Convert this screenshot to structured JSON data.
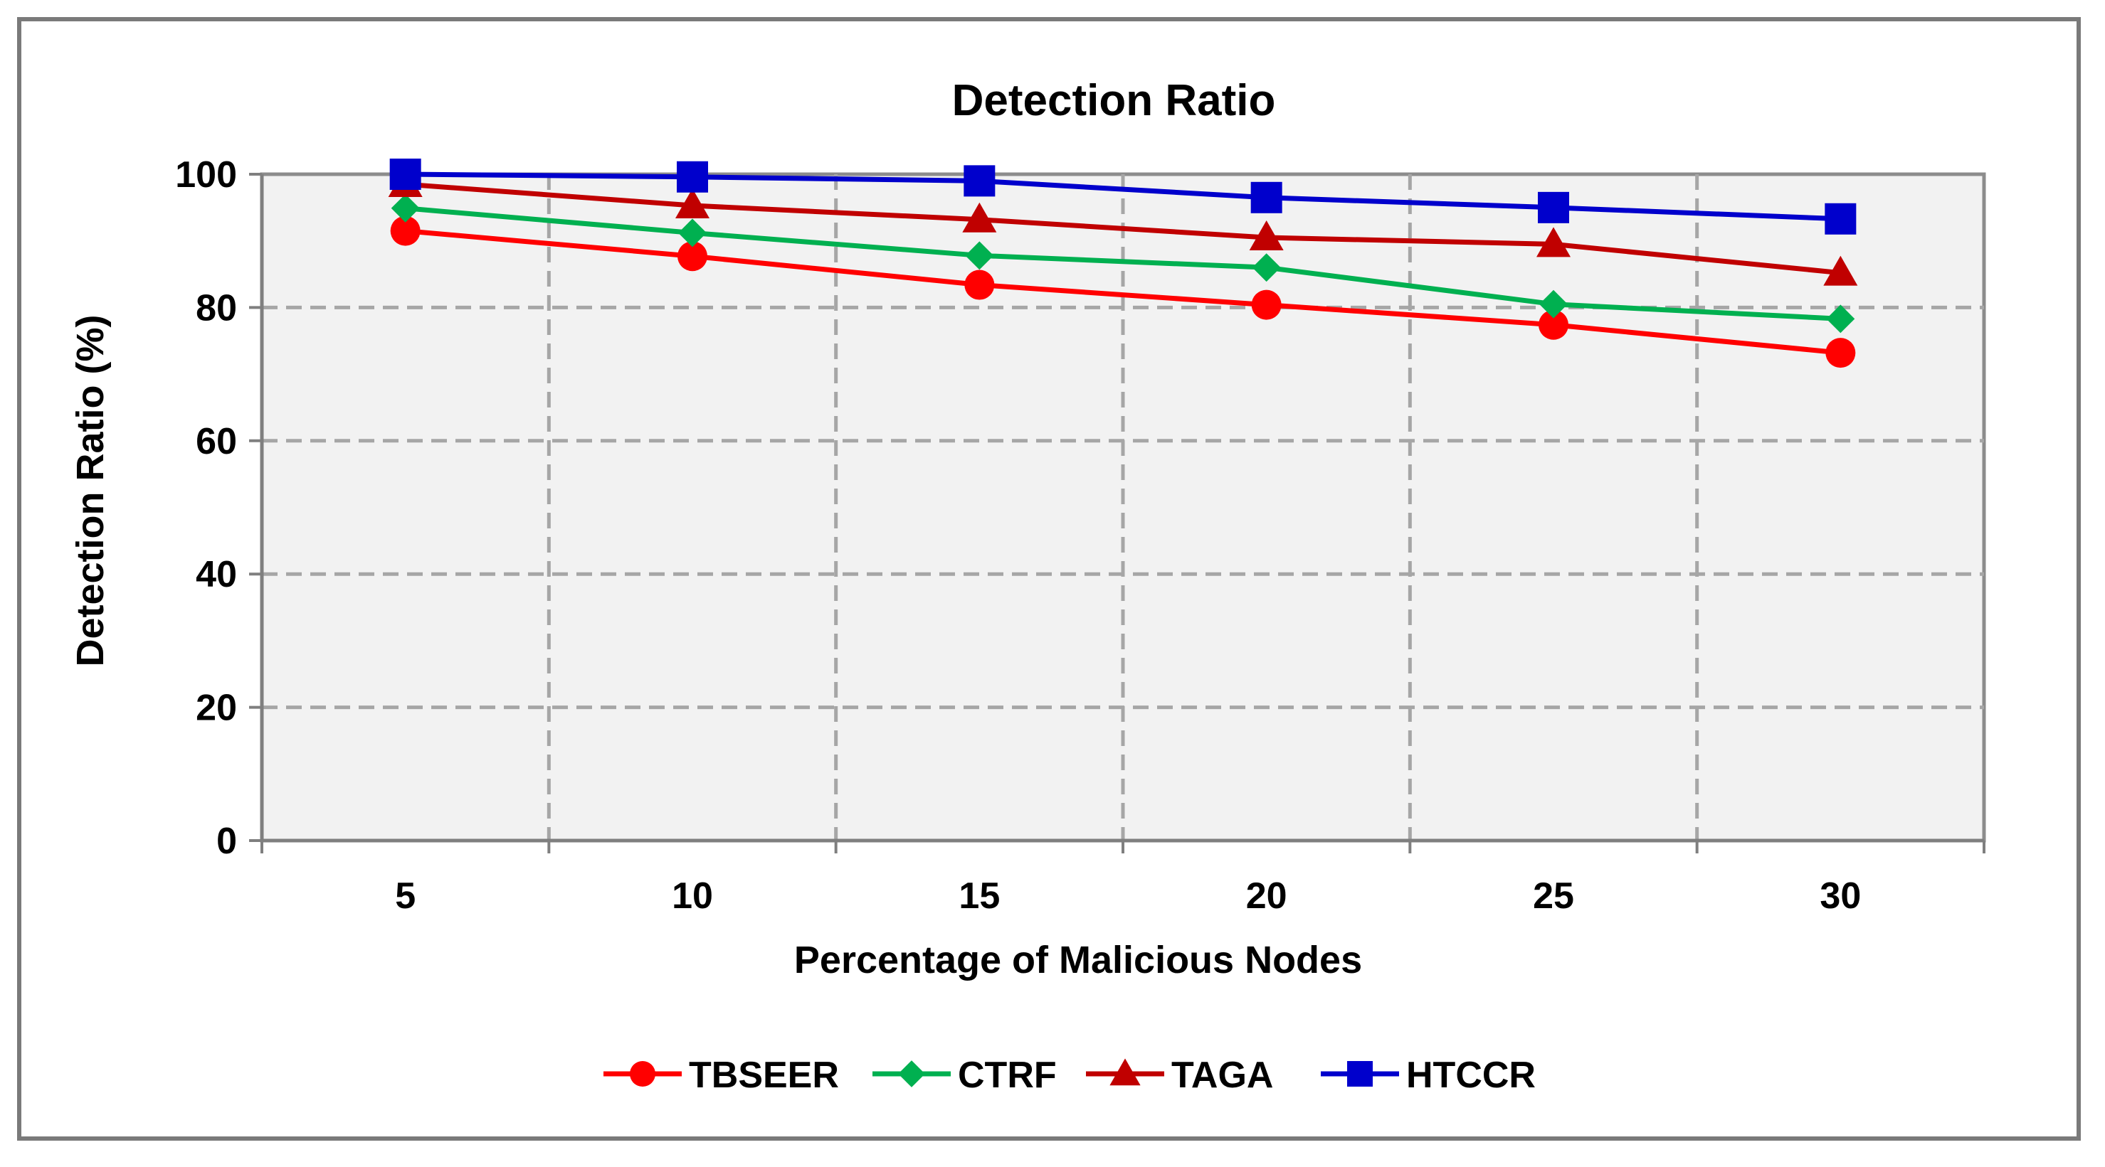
{
  "chart_data": {
    "type": "line",
    "title": "Detection Ratio",
    "xlabel": "Percentage of Malicious Nodes",
    "ylabel": "Detection Ratio (%)",
    "categories": [
      "5",
      "10",
      "15",
      "20",
      "25",
      "30"
    ],
    "ylim": [
      0,
      100
    ],
    "yticks": [
      "0",
      "20",
      "40",
      "60",
      "80",
      "100"
    ],
    "grid": true,
    "legend_position": "bottom",
    "series": [
      {
        "name": "TBSEER",
        "values": [
          91.5,
          87.7,
          83.4,
          80.4,
          77.4,
          73.2
        ],
        "color": "#ff0000",
        "marker": "circle"
      },
      {
        "name": "CTRF",
        "values": [
          94.9,
          91.2,
          87.8,
          86.0,
          80.5,
          78.3
        ],
        "color": "#00b050",
        "marker": "diamond"
      },
      {
        "name": "TAGA",
        "values": [
          98.5,
          95.3,
          93.2,
          90.5,
          89.5,
          85.2
        ],
        "color": "#c00000",
        "marker": "triangle"
      },
      {
        "name": "HTCCR",
        "values": [
          100,
          99.6,
          99.0,
          96.5,
          95.0,
          93.3
        ],
        "color": "#0000cc",
        "marker": "square"
      }
    ]
  }
}
